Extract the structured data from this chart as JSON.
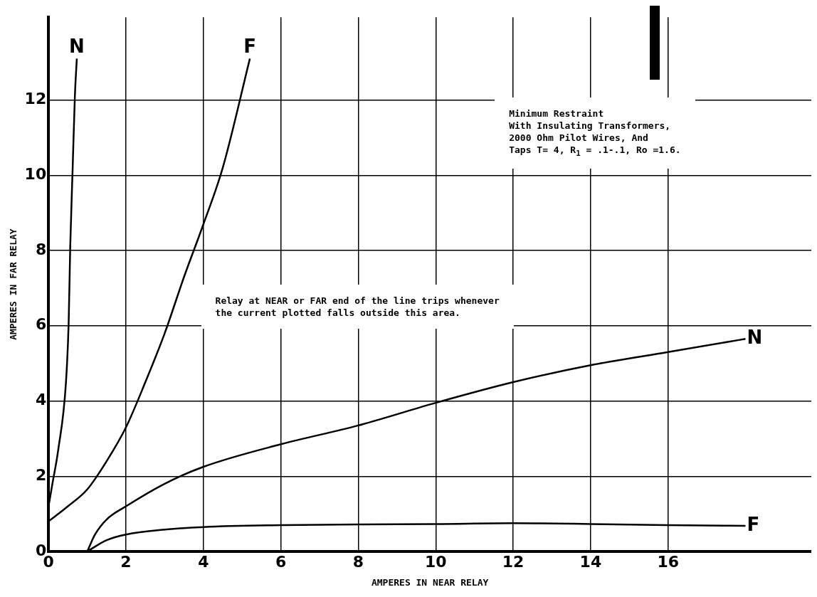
{
  "chart_data": {
    "type": "line",
    "xlabel": "AMPERES IN NEAR RELAY",
    "ylabel": "AMPERES IN FAR RELAY",
    "xlim": [
      0,
      19.7
    ],
    "ylim": [
      0,
      14.2
    ],
    "xticks": [
      0,
      2,
      4,
      6,
      8,
      10,
      12,
      14,
      16
    ],
    "yticks": [
      0,
      2,
      4,
      6,
      8,
      10,
      12
    ],
    "grid": true,
    "legend": false,
    "marker": "none",
    "line_style": "solid",
    "series": [
      {
        "name": "N",
        "color": "#000000",
        "x": [
          0,
          0.1,
          0.25,
          0.45,
          0.52,
          0.56,
          0.62,
          0.68,
          0.73
        ],
        "values": [
          1.2,
          1.8,
          2.7,
          4.5,
          6.1,
          8.1,
          10.1,
          12.1,
          13.1
        ]
      },
      {
        "name": "F",
        "color": "#000000",
        "x": [
          0,
          0.5,
          1,
          1.5,
          2,
          2.5,
          3,
          3.5,
          4,
          4.5,
          5.2
        ],
        "values": [
          0.8,
          1.2,
          1.65,
          2.4,
          3.3,
          4.5,
          5.8,
          7.3,
          8.7,
          10.2,
          13.1
        ]
      },
      {
        "name": "N",
        "color": "#000000",
        "x": [
          1,
          1.2,
          1.5,
          2,
          3,
          4,
          6,
          8,
          10,
          12,
          14,
          16,
          18
        ],
        "values": [
          0,
          0.45,
          0.85,
          1.2,
          1.8,
          2.25,
          2.85,
          3.35,
          3.95,
          4.5,
          4.95,
          5.3,
          5.65
        ]
      },
      {
        "name": "F",
        "color": "#000000",
        "x": [
          1,
          1.5,
          2,
          3,
          4,
          6,
          8,
          10,
          12,
          14,
          16,
          18
        ],
        "values": [
          0,
          0.3,
          0.45,
          0.58,
          0.65,
          0.7,
          0.72,
          0.73,
          0.75,
          0.73,
          0.7,
          0.68
        ]
      }
    ],
    "annotations": [
      "Minimum Restraint\nWith Insulating Transformers,\n2000 Ohm Pilot Wires, And\nTaps T= 4, R$_{1}$ = .1-.1, Ro =1.6.",
      "Relay at NEAR or FAR end of the line trips whenever\nthe current plotted falls outside this area."
    ]
  }
}
